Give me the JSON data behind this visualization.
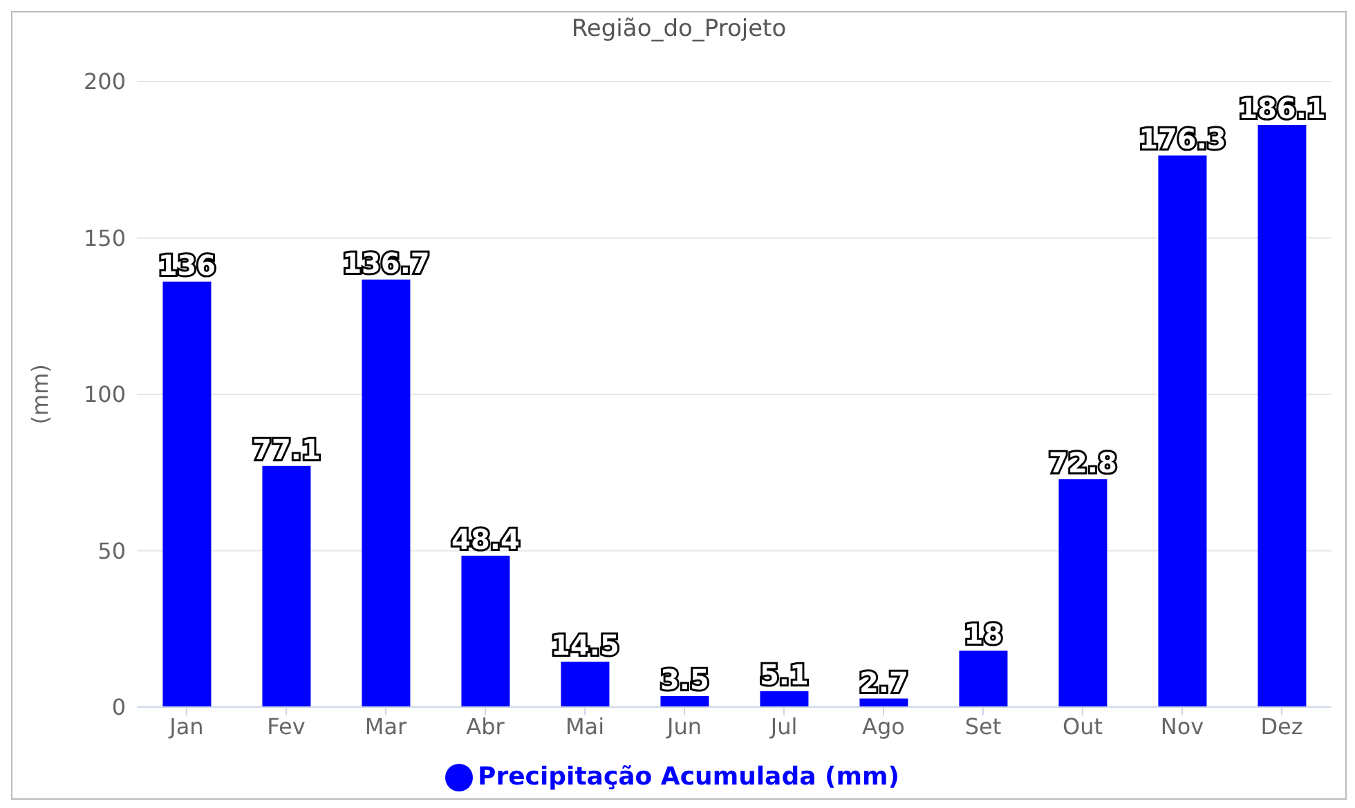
{
  "chart_data": {
    "type": "bar",
    "title": "Região_do_Projeto",
    "ylabel": "(mm)",
    "categories": [
      "Jan",
      "Fev",
      "Mar",
      "Abr",
      "Mai",
      "Jun",
      "Jul",
      "Ago",
      "Set",
      "Out",
      "Nov",
      "Dez"
    ],
    "series": [
      {
        "name": "Precipitação Acumulada (mm)",
        "color": "#0000ff",
        "values": [
          136,
          77.1,
          136.7,
          48.4,
          14.5,
          3.5,
          5.1,
          2.7,
          18,
          72.8,
          176.3,
          186.1
        ]
      }
    ],
    "ylim": [
      0,
      200
    ],
    "yticks": [
      0,
      50,
      100,
      150,
      200
    ],
    "grid": "y",
    "legend": "bottom",
    "data_labels": true
  }
}
